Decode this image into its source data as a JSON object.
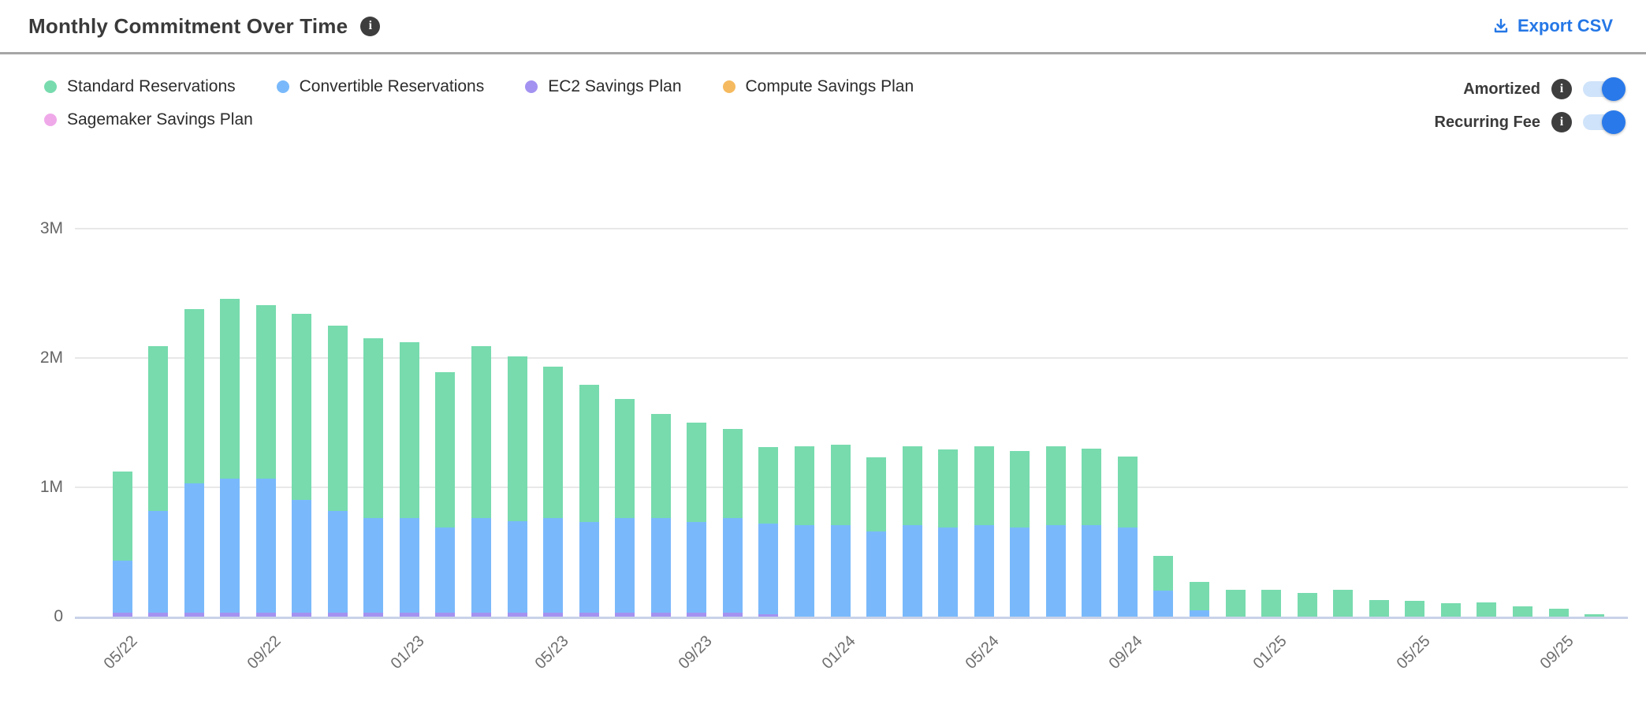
{
  "header": {
    "title": "Monthly Commitment Over Time",
    "export_label": "Export CSV"
  },
  "legend": [
    {
      "label": "Standard Reservations",
      "color": "#77DBAE",
      "slug": "standard-reservations"
    },
    {
      "label": "Convertible Reservations",
      "color": "#79B9FB",
      "slug": "convertible-reservations"
    },
    {
      "label": "EC2 Savings Plan",
      "color": "#A492F1",
      "slug": "ec2-savings-plan"
    },
    {
      "label": "Compute Savings Plan",
      "color": "#F5BA5F",
      "slug": "compute-savings-plan"
    },
    {
      "label": "Sagemaker Savings Plan",
      "color": "#EFA9E9",
      "slug": "sagemaker-savings-plan"
    }
  ],
  "toggles": [
    {
      "label": "Amortized",
      "state": "on"
    },
    {
      "label": "Recurring Fee",
      "state": "on"
    }
  ],
  "icons": {
    "info": "info-icon",
    "download": "download-icon"
  },
  "colors": {
    "accent_blue": "#2577E6",
    "toggle_track": "#CFE3FA",
    "toggle_knob": "#2979EA",
    "gridline": "#E8E8E8",
    "axis_line": "#C8D2E8"
  },
  "chart_data": {
    "type": "bar",
    "stacked": true,
    "title": "Monthly Commitment Over Time",
    "xlabel": "",
    "ylabel": "",
    "values_unit": "millions",
    "ylim_millions": [
      0,
      3
    ],
    "grid": true,
    "y_ticks": [
      {
        "label": "0",
        "m": 0
      },
      {
        "label": "1M",
        "m": 1
      },
      {
        "label": "2M",
        "m": 2
      },
      {
        "label": "3M",
        "m": 3
      }
    ],
    "categories": [
      "05/22",
      "06/22",
      "07/22",
      "08/22",
      "09/22",
      "10/22",
      "11/22",
      "12/22",
      "01/23",
      "02/23",
      "03/23",
      "04/23",
      "05/23",
      "06/23",
      "07/23",
      "08/23",
      "09/23",
      "10/23",
      "11/23",
      "12/23",
      "01/24",
      "02/24",
      "03/24",
      "04/24",
      "05/24",
      "06/24",
      "07/24",
      "08/24",
      "09/24",
      "10/24",
      "11/24",
      "12/24",
      "01/25",
      "02/25",
      "03/25",
      "04/25",
      "05/25",
      "06/25",
      "07/25",
      "08/25",
      "09/25",
      "10/25"
    ],
    "x_tick_labels_shown": [
      "05/22",
      "09/22",
      "01/23",
      "05/23",
      "09/23",
      "01/24",
      "05/24",
      "09/24",
      "01/25",
      "05/25",
      "09/25"
    ],
    "stack_order_bottom_to_top": [
      "Sagemaker Savings Plan",
      "Compute Savings Plan",
      "EC2 Savings Plan",
      "Convertible Reservations",
      "Standard Reservations"
    ],
    "series": [
      {
        "name": "Standard Reservations",
        "color": "#77DBAE",
        "values": [
          0.69,
          1.27,
          1.35,
          1.39,
          1.34,
          1.44,
          1.43,
          1.39,
          1.36,
          1.2,
          1.33,
          1.27,
          1.17,
          1.06,
          0.92,
          0.81,
          0.77,
          0.69,
          0.59,
          0.61,
          0.62,
          0.57,
          0.61,
          0.6,
          0.61,
          0.59,
          0.61,
          0.59,
          0.55,
          0.27,
          0.22,
          0.21,
          0.21,
          0.18,
          0.21,
          0.13,
          0.12,
          0.105,
          0.11,
          0.08,
          0.06,
          0.02
        ]
      },
      {
        "name": "Convertible Reservations",
        "color": "#79B9FB",
        "values": [
          0.4,
          0.79,
          1.0,
          1.04,
          1.04,
          0.87,
          0.79,
          0.73,
          0.73,
          0.66,
          0.73,
          0.71,
          0.73,
          0.7,
          0.73,
          0.73,
          0.7,
          0.73,
          0.7,
          0.71,
          0.71,
          0.66,
          0.71,
          0.69,
          0.71,
          0.69,
          0.71,
          0.71,
          0.69,
          0.2,
          0.05,
          0,
          0,
          0,
          0,
          0,
          0,
          0,
          0,
          0,
          0,
          0
        ]
      },
      {
        "name": "EC2 Savings Plan",
        "color": "#A492F1",
        "values": [
          0.03,
          0.03,
          0.03,
          0.03,
          0.03,
          0.03,
          0.03,
          0.03,
          0.03,
          0.03,
          0.03,
          0.03,
          0.03,
          0.03,
          0.03,
          0.03,
          0.03,
          0.03,
          0.02,
          0,
          0,
          0,
          0,
          0,
          0,
          0,
          0,
          0,
          0,
          0,
          0,
          0,
          0,
          0,
          0,
          0,
          0,
          0,
          0,
          0,
          0,
          0
        ]
      },
      {
        "name": "Compute Savings Plan",
        "color": "#F5BA5F",
        "values": [
          0,
          0,
          0,
          0,
          0,
          0,
          0,
          0,
          0,
          0,
          0,
          0,
          0,
          0,
          0,
          0,
          0,
          0,
          0,
          0,
          0,
          0,
          0,
          0,
          0,
          0,
          0,
          0,
          0,
          0,
          0,
          0,
          0,
          0,
          0,
          0,
          0,
          0,
          0,
          0,
          0,
          0
        ]
      },
      {
        "name": "Sagemaker Savings Plan",
        "color": "#EFA9E9",
        "values": [
          0,
          0,
          0,
          0,
          0,
          0,
          0,
          0,
          0,
          0,
          0,
          0,
          0,
          0,
          0,
          0,
          0,
          0,
          0,
          0,
          0,
          0,
          0,
          0,
          0,
          0,
          0,
          0,
          0,
          0,
          0,
          0,
          0,
          0,
          0,
          0,
          0,
          0,
          0,
          0,
          0,
          0
        ]
      }
    ]
  }
}
